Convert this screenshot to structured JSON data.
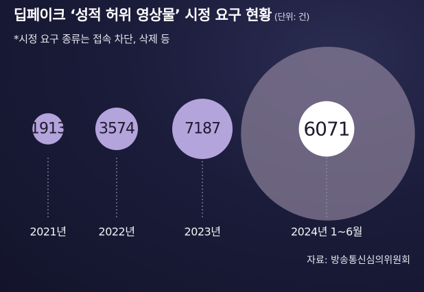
{
  "header": {
    "title": "딥페이크 ‘성적 허위 영상물’ 시정 요구 현황",
    "unit": "(단위: 건)",
    "subtitle": "*시정 요구 종류는 접속 차단, 삭제 등"
  },
  "source": "자료: 방송통신심의위원회",
  "colors": {
    "circle_fill": "#b4a4dc",
    "highlight_fill": "#ffffff",
    "halo_fill": "#8a7f98",
    "value_text": "#1e1a2e",
    "label_text": "#f2f2f6",
    "dotted_line": "#8e8ea8"
  },
  "chart_data": {
    "type": "bubble",
    "title": "딥페이크 ‘성적 허위 영상물’ 시정 요구 현황",
    "unit": "(단위: 건)",
    "categories": [
      "2021년",
      "2022년",
      "2023년",
      "2024년 1~6월"
    ],
    "values": [
      1913,
      3574,
      7187,
      6071
    ],
    "value_labels": [
      "1913",
      "3574",
      "7187",
      "6071"
    ],
    "highlight_index": 3
  }
}
